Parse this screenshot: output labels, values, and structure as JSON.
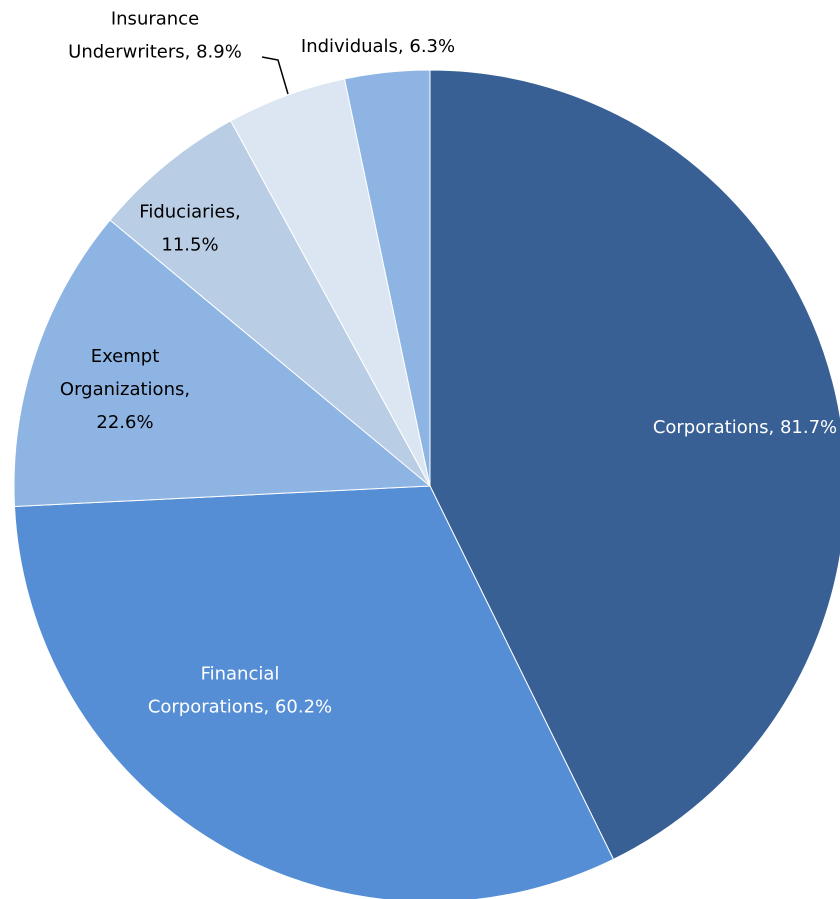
{
  "chart_data": {
    "type": "pie",
    "values": [
      81.7,
      60.2,
      22.6,
      11.5,
      8.9,
      6.3
    ],
    "value_labels": [
      "Corporations, 81.7%",
      "Financial\nCorporations, 60.2%",
      "Exempt\nOrganizations,\n22.6%",
      "Fiduciaries,\n11.5%",
      "Insurance\nUnderwriters, 8.9%",
      "Individuals, 6.3%"
    ],
    "colors": [
      "#386094",
      "#558ed5",
      "#8eb4e3",
      "#b9cde5",
      "#dce6f2",
      "#8eb4e3"
    ]
  }
}
